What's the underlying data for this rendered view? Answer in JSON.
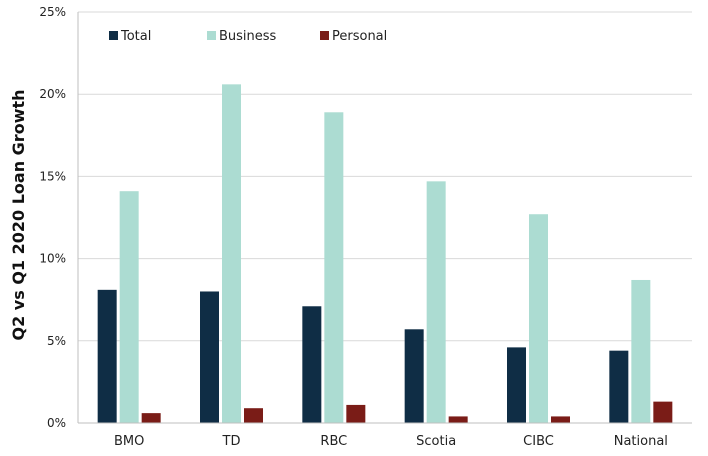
{
  "chart_data": {
    "type": "bar",
    "title": "",
    "xlabel": "",
    "ylabel": "Q2 vs Q1 2020 Loan Growth",
    "ylim": [
      0,
      25
    ],
    "yticks": [
      "0%",
      "5%",
      "10%",
      "15%",
      "20%",
      "25%"
    ],
    "ytick_values": [
      0,
      5,
      10,
      15,
      20,
      25
    ],
    "grid": true,
    "legend_position": "top-left",
    "categories": [
      "BMO",
      "TD",
      "RBC",
      "Scotia",
      "CIBC",
      "National"
    ],
    "series": [
      {
        "name": "Total",
        "color": "#0f2d45",
        "values": [
          8.1,
          8.0,
          7.1,
          5.7,
          4.6,
          4.4
        ]
      },
      {
        "name": "Business",
        "color": "#acdcd2",
        "values": [
          14.1,
          20.6,
          18.9,
          14.7,
          12.7,
          8.7
        ]
      },
      {
        "name": "Personal",
        "color": "#7a1c17",
        "values": [
          0.6,
          0.9,
          1.1,
          0.4,
          0.4,
          1.3
        ]
      }
    ]
  }
}
